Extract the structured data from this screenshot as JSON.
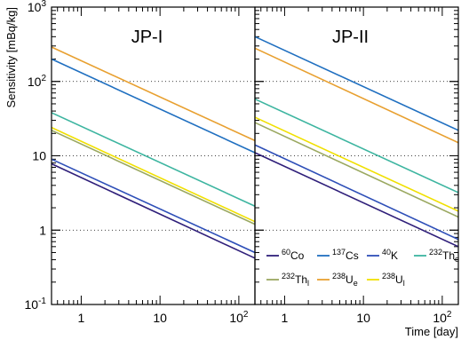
{
  "chart_data": [
    {
      "type": "line",
      "title": "JP-I",
      "xlabel": "",
      "ylabel": "Sensitivity [mBq/kg]",
      "x_scale": "log",
      "y_scale": "log",
      "xlim": [
        0.42,
        160
      ],
      "ylim": [
        0.1,
        1000
      ],
      "x_ticks": [
        1,
        10,
        100
      ],
      "x_tick_labels": [
        "1",
        "10",
        "10^2"
      ],
      "y_ticks": [
        0.1,
        1,
        10,
        100,
        1000
      ],
      "y_tick_labels": [
        "10^-1",
        "1",
        "10",
        "10^2",
        "10^3"
      ],
      "grid": "dotted",
      "series": [
        {
          "name": "60Co",
          "color": "#2f1f7a",
          "x": [
            0.42,
            160
          ],
          "y": [
            7.8,
            0.42
          ]
        },
        {
          "name": "137Cs",
          "color": "#1f6fc0",
          "x": [
            0.42,
            160
          ],
          "y": [
            200,
            11
          ]
        },
        {
          "name": "40K",
          "color": "#2e4fb8",
          "x": [
            0.42,
            160
          ],
          "y": [
            9,
            0.5
          ]
        },
        {
          "name": "232The",
          "color": "#3db5a0",
          "x": [
            0.42,
            160
          ],
          "y": [
            38,
            2.1
          ]
        },
        {
          "name": "232Thl",
          "color": "#9aa860",
          "x": [
            0.42,
            160
          ],
          "y": [
            22,
            1.2
          ]
        },
        {
          "name": "238Ue",
          "color": "#e8a030",
          "x": [
            0.42,
            160
          ],
          "y": [
            290,
            16
          ]
        },
        {
          "name": "238Ul",
          "color": "#f0e000",
          "x": [
            0.42,
            160
          ],
          "y": [
            24,
            1.3
          ]
        }
      ]
    },
    {
      "type": "line",
      "title": "JP-II",
      "xlabel": "Time [day]",
      "ylabel": "",
      "x_scale": "log",
      "y_scale": "log",
      "xlim": [
        0.42,
        160
      ],
      "ylim": [
        0.1,
        1000
      ],
      "x_ticks": [
        1,
        10,
        100
      ],
      "x_tick_labels": [
        "1",
        "10",
        "10^2"
      ],
      "grid": "dotted",
      "series": [
        {
          "name": "60Co",
          "color": "#2f1f7a",
          "x": [
            0.42,
            160
          ],
          "y": [
            11,
            0.6
          ]
        },
        {
          "name": "137Cs",
          "color": "#1f6fc0",
          "x": [
            0.42,
            160
          ],
          "y": [
            400,
            22
          ]
        },
        {
          "name": "40K",
          "color": "#2e4fb8",
          "x": [
            0.42,
            160
          ],
          "y": [
            14,
            0.75
          ]
        },
        {
          "name": "232The",
          "color": "#3db5a0",
          "x": [
            0.42,
            160
          ],
          "y": [
            58,
            3.2
          ]
        },
        {
          "name": "232Thl",
          "color": "#9aa860",
          "x": [
            0.42,
            160
          ],
          "y": [
            28,
            1.5
          ]
        },
        {
          "name": "238Ue",
          "color": "#e8a030",
          "x": [
            0.42,
            160
          ],
          "y": [
            280,
            15
          ]
        },
        {
          "name": "238Ul",
          "color": "#f0e000",
          "x": [
            0.42,
            160
          ],
          "y": [
            33,
            1.8
          ]
        }
      ]
    }
  ],
  "legend": [
    {
      "key": "60Co",
      "mass": "60",
      "symbol": "Co",
      "sub": "",
      "color": "#2f1f7a"
    },
    {
      "key": "137Cs",
      "mass": "137",
      "symbol": "Cs",
      "sub": "",
      "color": "#1f6fc0"
    },
    {
      "key": "40K",
      "mass": "40",
      "symbol": "K",
      "sub": "",
      "color": "#2e4fb8"
    },
    {
      "key": "232The",
      "mass": "232",
      "symbol": "Th",
      "sub": "e",
      "color": "#3db5a0"
    },
    {
      "key": "232Thl",
      "mass": "232",
      "symbol": "Th",
      "sub": "l",
      "color": "#9aa860"
    },
    {
      "key": "238Ue",
      "mass": "238",
      "symbol": "U",
      "sub": "e",
      "color": "#e8a030"
    },
    {
      "key": "238Ul",
      "mass": "238",
      "symbol": "U",
      "sub": "l",
      "color": "#f0e000"
    }
  ]
}
